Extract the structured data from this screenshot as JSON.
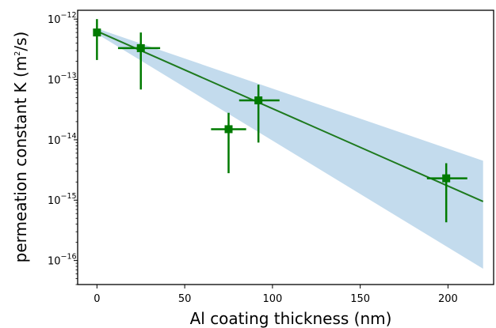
{
  "chart_data": {
    "type": "scatter",
    "title": "",
    "xlabel": "Al coating thickness (nm)",
    "ylabel": {
      "prefix": "permeation constant K (m",
      "sup": "2",
      "suffix": "/s)"
    },
    "x_scale": "linear",
    "y_scale": "log",
    "xlim": [
      -11,
      226
    ],
    "ylim": [
      4e-17,
      1.4e-12
    ],
    "x_ticks": [
      0,
      50,
      100,
      150,
      200
    ],
    "x_tick_labels": [
      "0",
      "50",
      "100",
      "150",
      "200"
    ],
    "y_ticks": [
      1e-16,
      1e-15,
      1e-14,
      1e-13,
      1e-12
    ],
    "y_tick_labels": [
      {
        "base": "10",
        "exp": "−16"
      },
      {
        "base": "10",
        "exp": "−15"
      },
      {
        "base": "10",
        "exp": "−14"
      },
      {
        "base": "10",
        "exp": "−13"
      },
      {
        "base": "10",
        "exp": "−12"
      }
    ],
    "grid": false,
    "legend": "none",
    "points": [
      {
        "x": 0,
        "y": 6e-13,
        "x_err": [
          0,
          0
        ],
        "y_err": [
          2.1e-13,
          1e-12
        ]
      },
      {
        "x": 25,
        "y": 3.3e-13,
        "x_err": [
          12,
          36
        ],
        "y_err": [
          6.8e-14,
          6e-13
        ]
      },
      {
        "x": 75,
        "y": 1.5e-14,
        "x_err": [
          65,
          85
        ],
        "y_err": [
          2.8e-15,
          2.8e-14
        ]
      },
      {
        "x": 92,
        "y": 4.5e-14,
        "x_err": [
          81,
          104
        ],
        "y_err": [
          9e-15,
          8.2e-14
        ]
      },
      {
        "x": 199,
        "y": 2.3e-15,
        "x_err": [
          188,
          211
        ],
        "y_err": [
          4.3e-16,
          4.1e-15
        ]
      }
    ],
    "fit_line": {
      "x": [
        0,
        220
      ],
      "y": [
        6.3e-13,
        9.5e-16
      ]
    },
    "confidence_band": {
      "x": [
        0,
        220
      ],
      "lower": [
        5.7e-13,
        7.3e-17
      ],
      "upper": [
        7e-13,
        4.5e-15
      ]
    },
    "colors": {
      "points": "#007a00",
      "line": "#1e7a1e",
      "band": "#c3dbed"
    }
  }
}
